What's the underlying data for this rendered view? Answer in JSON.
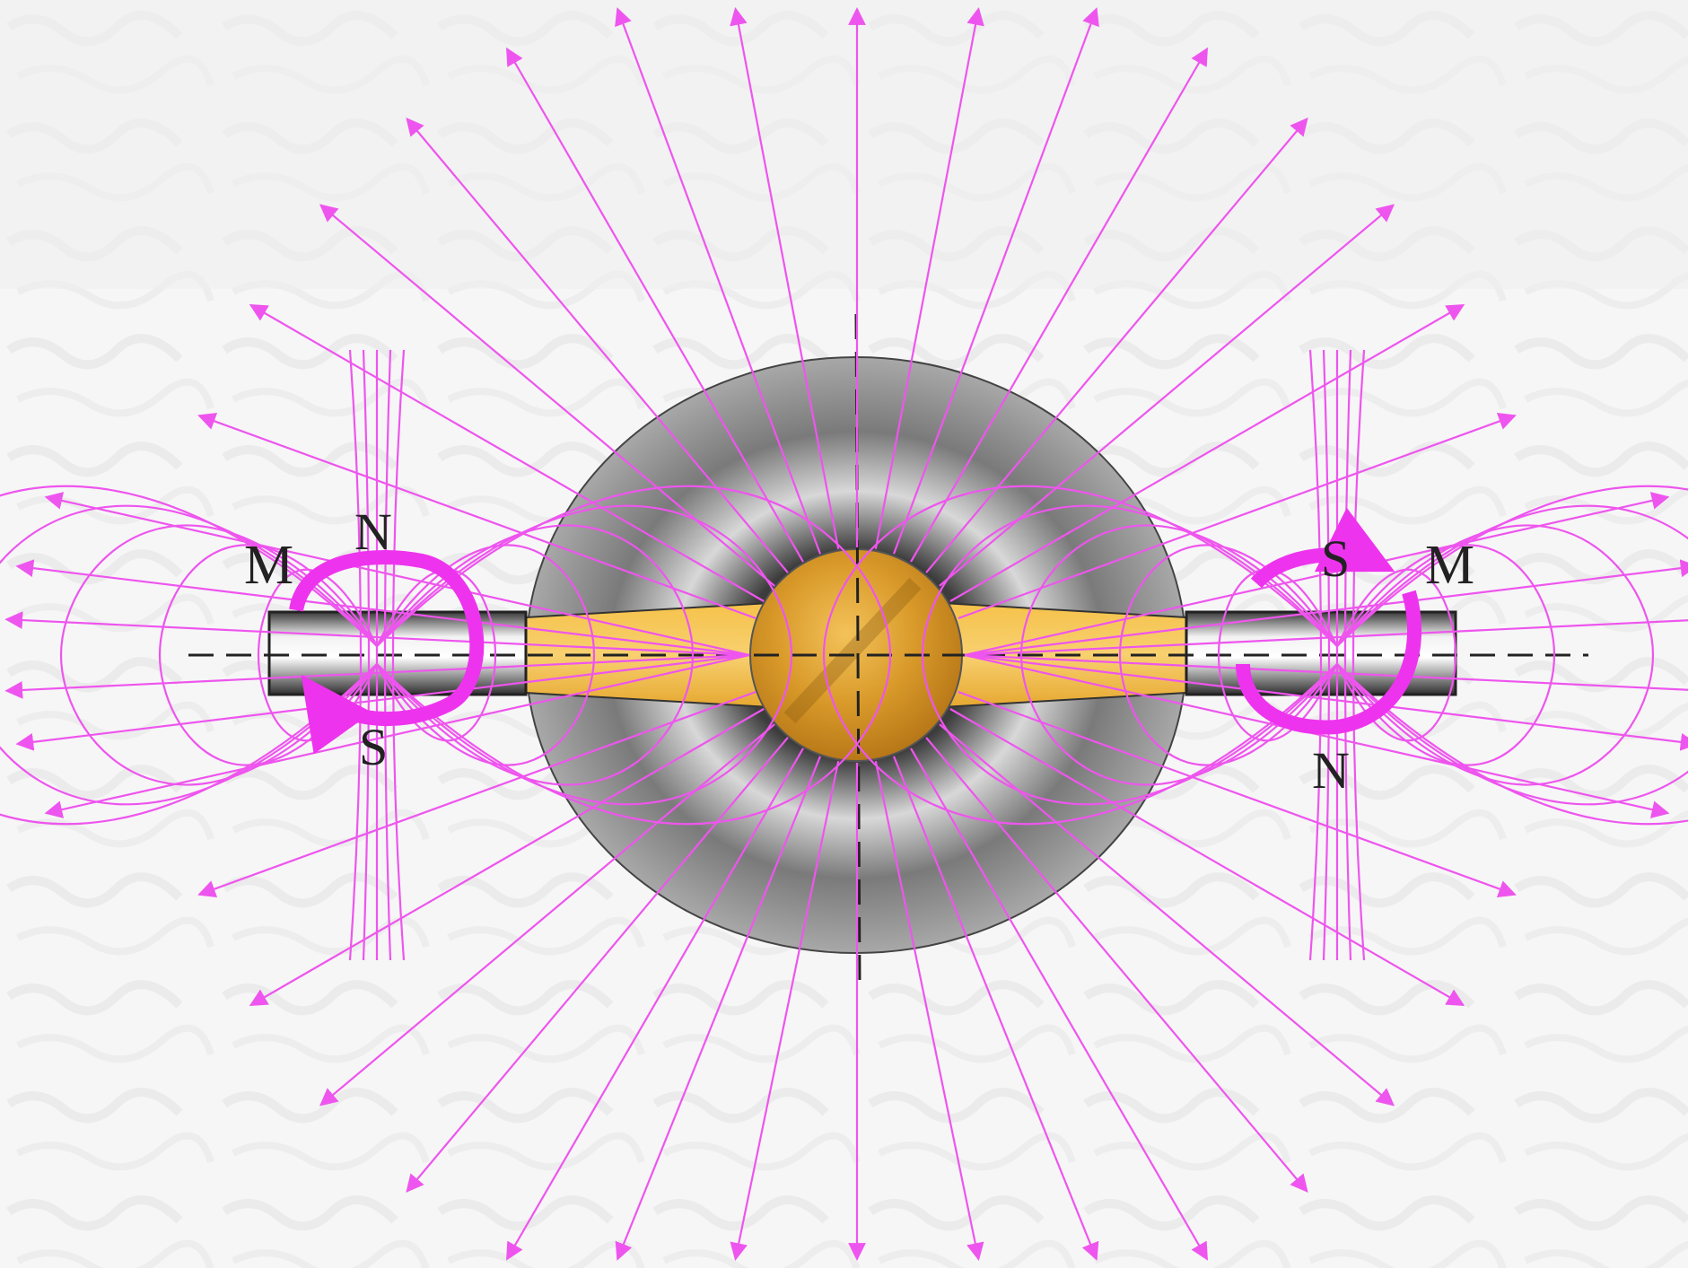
{
  "labels": {
    "left_m": "M",
    "left_n": "N",
    "left_s": "S",
    "right_s": "S",
    "right_m": "M",
    "right_n": "N"
  },
  "colors": {
    "field_line": "#ee55ee",
    "rotation_arrow": "#ee33ee",
    "sphere_outer": "#9a9a9a",
    "core": "#e0a030",
    "bar_steel": "#bdbdbd",
    "background": "#f7f7f7"
  }
}
